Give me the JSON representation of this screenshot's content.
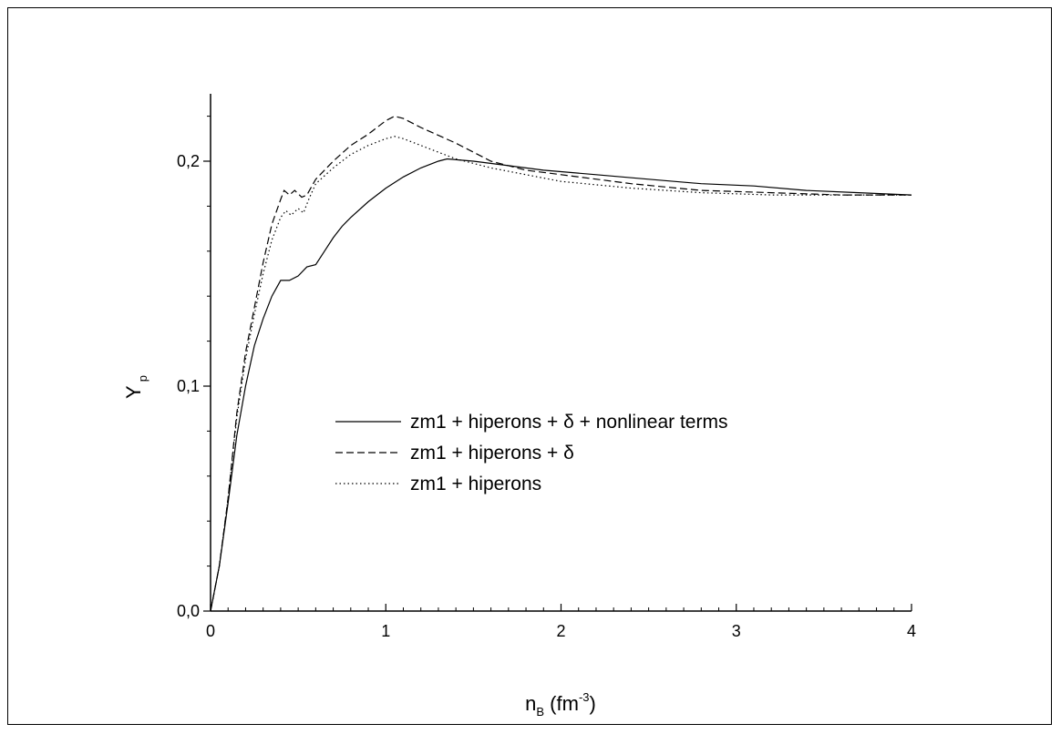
{
  "chart_data": {
    "type": "line",
    "title": "",
    "xlabel": {
      "main": "n",
      "subscript": "B",
      "unit_open": " (fm",
      "unit_sup": "-3",
      "unit_close": ")"
    },
    "ylabel": {
      "main": "Y",
      "subscript": "p"
    },
    "xlim": [
      0,
      4
    ],
    "ylim": [
      0,
      0.23
    ],
    "x_ticks": [
      {
        "value": 0,
        "label": "0"
      },
      {
        "value": 1,
        "label": "1"
      },
      {
        "value": 2,
        "label": "2"
      },
      {
        "value": 3,
        "label": "3"
      },
      {
        "value": 4,
        "label": "4"
      }
    ],
    "y_ticks": [
      {
        "value": 0,
        "label": "0,0"
      },
      {
        "value": 0.1,
        "label": "0,1"
      },
      {
        "value": 0.2,
        "label": "0,2"
      }
    ],
    "x_minor_step": 0.1,
    "y_minor_step": 0.02,
    "grid": false,
    "legend_position": "center",
    "series": [
      {
        "name": "zm1 + hiperons + δ + nonlinear terms",
        "style": "solid",
        "color": "#000000",
        "points": [
          [
            0,
            0
          ],
          [
            0.05,
            0.02
          ],
          [
            0.1,
            0.048
          ],
          [
            0.15,
            0.078
          ],
          [
            0.2,
            0.1
          ],
          [
            0.25,
            0.118
          ],
          [
            0.3,
            0.13
          ],
          [
            0.35,
            0.14
          ],
          [
            0.4,
            0.147
          ],
          [
            0.45,
            0.147
          ],
          [
            0.5,
            0.149
          ],
          [
            0.55,
            0.153
          ],
          [
            0.6,
            0.154
          ],
          [
            0.65,
            0.16
          ],
          [
            0.7,
            0.166
          ],
          [
            0.75,
            0.171
          ],
          [
            0.8,
            0.175
          ],
          [
            0.9,
            0.182
          ],
          [
            1.0,
            0.188
          ],
          [
            1.1,
            0.193
          ],
          [
            1.2,
            0.197
          ],
          [
            1.3,
            0.2
          ],
          [
            1.35,
            0.201
          ],
          [
            1.5,
            0.2
          ],
          [
            1.7,
            0.198
          ],
          [
            1.9,
            0.196
          ],
          [
            2.2,
            0.194
          ],
          [
            2.5,
            0.192
          ],
          [
            2.8,
            0.19
          ],
          [
            3.1,
            0.189
          ],
          [
            3.4,
            0.187
          ],
          [
            3.7,
            0.186
          ],
          [
            4.0,
            0.185
          ]
        ]
      },
      {
        "name": "zm1 + hiperons + δ",
        "style": "dashed",
        "color": "#000000",
        "points": [
          [
            0,
            0
          ],
          [
            0.05,
            0.02
          ],
          [
            0.1,
            0.05
          ],
          [
            0.15,
            0.088
          ],
          [
            0.2,
            0.115
          ],
          [
            0.25,
            0.135
          ],
          [
            0.3,
            0.155
          ],
          [
            0.35,
            0.172
          ],
          [
            0.4,
            0.183
          ],
          [
            0.42,
            0.187
          ],
          [
            0.45,
            0.185
          ],
          [
            0.48,
            0.187
          ],
          [
            0.52,
            0.184
          ],
          [
            0.55,
            0.185
          ],
          [
            0.6,
            0.192
          ],
          [
            0.7,
            0.2
          ],
          [
            0.8,
            0.207
          ],
          [
            0.9,
            0.212
          ],
          [
            1.0,
            0.218
          ],
          [
            1.05,
            0.22
          ],
          [
            1.1,
            0.219
          ],
          [
            1.2,
            0.215
          ],
          [
            1.4,
            0.208
          ],
          [
            1.6,
            0.2
          ],
          [
            1.8,
            0.196
          ],
          [
            2.0,
            0.194
          ],
          [
            2.4,
            0.19
          ],
          [
            2.8,
            0.187
          ],
          [
            3.2,
            0.186
          ],
          [
            3.6,
            0.185
          ],
          [
            4.0,
            0.185
          ]
        ]
      },
      {
        "name": "zm1 + hiperons",
        "style": "dotted",
        "color": "#000000",
        "points": [
          [
            0,
            0
          ],
          [
            0.05,
            0.02
          ],
          [
            0.1,
            0.05
          ],
          [
            0.15,
            0.086
          ],
          [
            0.2,
            0.112
          ],
          [
            0.25,
            0.132
          ],
          [
            0.3,
            0.15
          ],
          [
            0.35,
            0.165
          ],
          [
            0.4,
            0.175
          ],
          [
            0.43,
            0.178
          ],
          [
            0.46,
            0.176
          ],
          [
            0.5,
            0.179
          ],
          [
            0.53,
            0.177
          ],
          [
            0.56,
            0.183
          ],
          [
            0.6,
            0.19
          ],
          [
            0.7,
            0.197
          ],
          [
            0.8,
            0.203
          ],
          [
            0.9,
            0.207
          ],
          [
            1.0,
            0.21
          ],
          [
            1.05,
            0.211
          ],
          [
            1.1,
            0.21
          ],
          [
            1.2,
            0.207
          ],
          [
            1.4,
            0.201
          ],
          [
            1.6,
            0.197
          ],
          [
            1.8,
            0.194
          ],
          [
            2.0,
            0.191
          ],
          [
            2.4,
            0.188
          ],
          [
            2.8,
            0.186
          ],
          [
            3.2,
            0.185
          ],
          [
            3.6,
            0.185
          ],
          [
            4.0,
            0.185
          ]
        ]
      }
    ]
  }
}
